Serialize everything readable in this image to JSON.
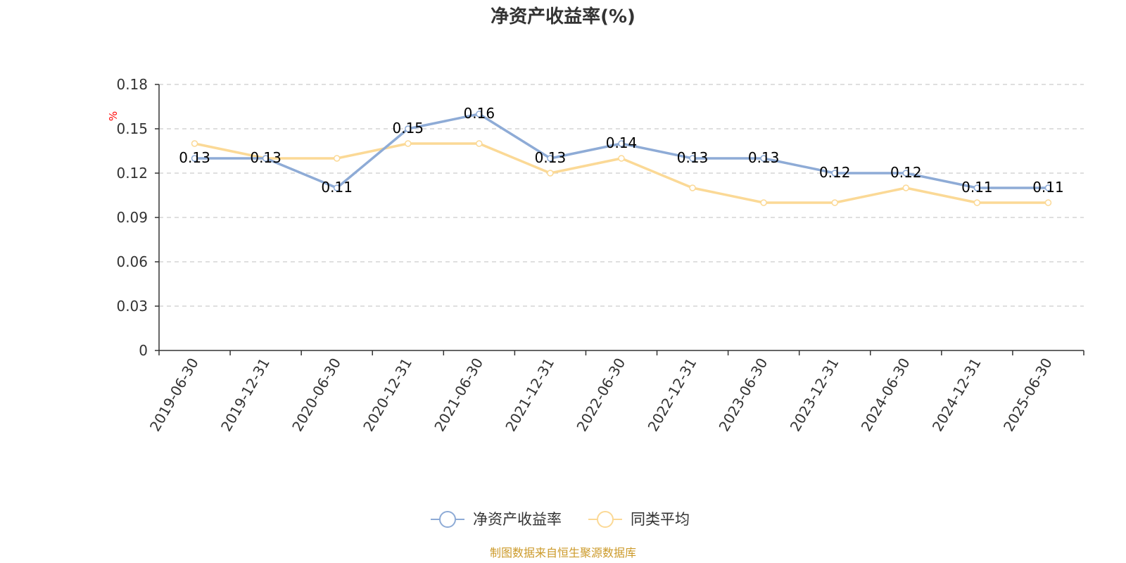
{
  "source_note": "制图数据来自恒生聚源数据库",
  "colors": {
    "series_1": "#8eabd6",
    "series_2": "#fbd996",
    "source_text": "#cc9a2a",
    "axis": "#333333",
    "grid": "#cccccc",
    "unit": "#ff0000"
  },
  "chart_data": {
    "type": "line",
    "title": "净资产收益率(%)",
    "ylabel": "%",
    "xlabel": "",
    "categories": [
      "2019-06-30",
      "2019-12-31",
      "2020-06-30",
      "2020-12-31",
      "2021-06-30",
      "2021-12-31",
      "2022-06-30",
      "2022-12-31",
      "2023-06-30",
      "2023-12-31",
      "2024-06-30",
      "2024-12-31",
      "2025-06-30"
    ],
    "y_ticks": [
      "0",
      "0.03",
      "0.06",
      "0.09",
      "0.12",
      "0.15",
      "0.18"
    ],
    "ylim": [
      0,
      0.18
    ],
    "grid": true,
    "legend_position": "bottom-center",
    "series": [
      {
        "name": "净资产收益率",
        "values": [
          0.13,
          0.13,
          0.11,
          0.15,
          0.16,
          0.13,
          0.14,
          0.13,
          0.13,
          0.12,
          0.12,
          0.11,
          0.11
        ],
        "labels": [
          "0.13",
          "0.13",
          "0.11",
          "0.15",
          "0.16",
          "0.13",
          "0.14",
          "0.13",
          "0.13",
          "0.12",
          "0.12",
          "0.11",
          "0.11"
        ],
        "color": "#8eabd6"
      },
      {
        "name": "同类平均",
        "values": [
          0.14,
          0.13,
          0.13,
          0.14,
          0.14,
          0.12,
          0.13,
          0.11,
          0.1,
          0.1,
          0.11,
          0.1,
          0.1
        ],
        "color": "#fbd996"
      }
    ]
  }
}
